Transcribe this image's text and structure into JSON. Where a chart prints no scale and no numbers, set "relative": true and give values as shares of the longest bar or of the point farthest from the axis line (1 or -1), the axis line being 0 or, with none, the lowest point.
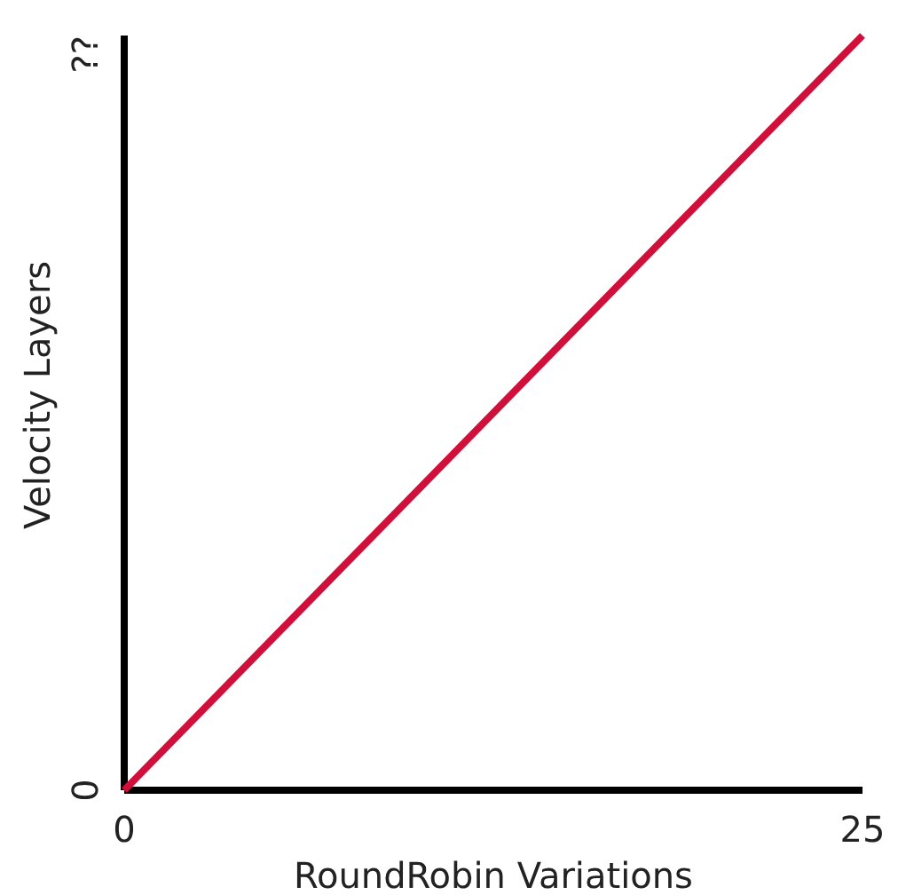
{
  "chart_data": {
    "type": "line",
    "xlabel": "RoundRobin Variations",
    "ylabel": "Velocity Layers",
    "xlim": [
      0,
      25
    ],
    "xticks": [
      0,
      25
    ],
    "relative": true,
    "annotations": [
      "0",
      "??"
    ],
    "grid": false,
    "marker": "none",
    "line_style": "solid",
    "series": [
      {
        "color": "#d0103a",
        "x": [
          0,
          25
        ],
        "values": [
          0,
          1
        ]
      }
    ]
  }
}
